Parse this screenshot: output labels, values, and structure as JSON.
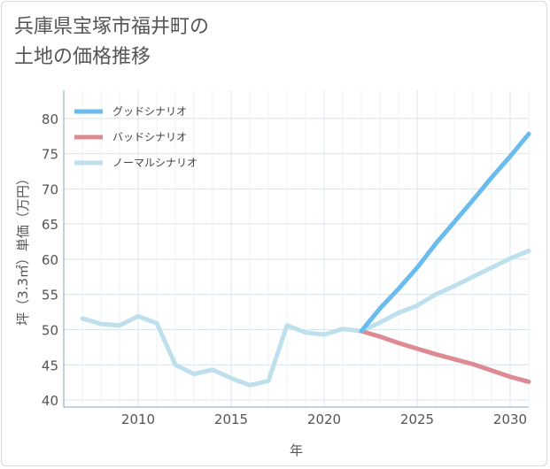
{
  "page": {
    "title": "兵庫県宝塚市福井町の\n土地の価格推移"
  },
  "chart_data": {
    "type": "line",
    "xlabel": "年",
    "ylabel": "坪（3.3㎡）単価（万円）",
    "xlim": [
      2006,
      2031
    ],
    "ylim": [
      39,
      84
    ],
    "x_ticks": [
      2010,
      2015,
      2020,
      2025,
      2030
    ],
    "y_ticks": [
      40,
      45,
      50,
      55,
      60,
      65,
      70,
      75,
      80
    ],
    "grid": true,
    "legend_position": "top-left",
    "series": [
      {
        "name": "グッドシナリオ",
        "color": "#6bbcee",
        "x": [
          2022,
          2023,
          2024,
          2025,
          2026,
          2027,
          2028,
          2029,
          2030,
          2031
        ],
        "y": [
          49.8,
          53.0,
          55.8,
          58.8,
          62.2,
          65.3,
          68.4,
          71.6,
          74.6,
          77.8
        ]
      },
      {
        "name": "バッドシナリオ",
        "color": "#de8a92",
        "x": [
          2022,
          2023,
          2024,
          2025,
          2026,
          2027,
          2028,
          2029,
          2030,
          2031
        ],
        "y": [
          49.8,
          49.0,
          48.1,
          47.3,
          46.5,
          45.8,
          45.1,
          44.2,
          43.3,
          42.6
        ]
      },
      {
        "name": "ノーマルシナリオ",
        "color": "#bde0ec",
        "x": [
          2007,
          2008,
          2009,
          2010,
          2011,
          2012,
          2013,
          2014,
          2015,
          2016,
          2017,
          2018,
          2019,
          2020,
          2021,
          2022,
          2023,
          2024,
          2025,
          2026,
          2027,
          2028,
          2029,
          2030,
          2031
        ],
        "y": [
          51.6,
          50.8,
          50.6,
          51.9,
          50.9,
          45.0,
          43.7,
          44.3,
          43.1,
          42.1,
          42.7,
          50.6,
          49.6,
          49.3,
          50.1,
          49.8,
          51.0,
          52.4,
          53.4,
          55.0,
          56.2,
          57.5,
          58.8,
          60.1,
          61.2
        ]
      }
    ]
  }
}
